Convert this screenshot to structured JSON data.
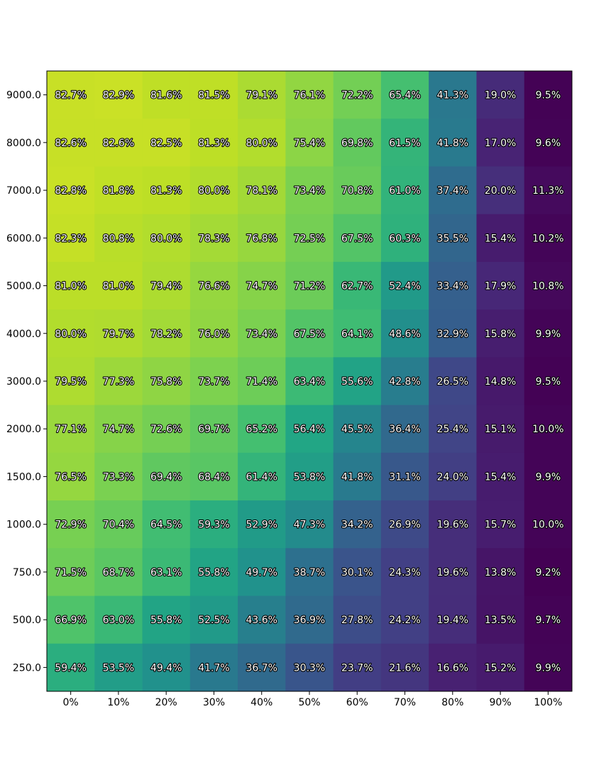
{
  "chart_data": {
    "type": "heatmap",
    "title": "",
    "xlabel": "",
    "ylabel": "",
    "x_categories": [
      "0%",
      "10%",
      "20%",
      "30%",
      "40%",
      "50%",
      "60%",
      "70%",
      "80%",
      "90%",
      "100%"
    ],
    "y_categories": [
      "9000.0",
      "8000.0",
      "7000.0",
      "6000.0",
      "5000.0",
      "4000.0",
      "3000.0",
      "2000.0",
      "1500.0",
      "1000.0",
      "750.0",
      "500.0",
      "250.0"
    ],
    "values": [
      [
        82.7,
        82.9,
        81.6,
        81.5,
        79.1,
        76.1,
        72.2,
        65.4,
        41.3,
        19.0,
        9.5
      ],
      [
        82.6,
        82.6,
        82.5,
        81.3,
        80.0,
        75.4,
        69.8,
        61.5,
        41.8,
        17.0,
        9.6
      ],
      [
        82.8,
        81.8,
        81.3,
        80.0,
        78.1,
        73.4,
        70.8,
        61.0,
        37.4,
        20.0,
        11.3
      ],
      [
        82.3,
        80.8,
        80.0,
        78.3,
        76.8,
        72.5,
        67.5,
        60.3,
        35.5,
        15.4,
        10.2
      ],
      [
        81.0,
        81.0,
        79.4,
        76.6,
        74.7,
        71.2,
        62.7,
        52.4,
        33.4,
        17.9,
        10.8
      ],
      [
        80.0,
        79.7,
        78.2,
        76.0,
        73.4,
        67.5,
        64.1,
        48.6,
        32.9,
        15.8,
        9.9
      ],
      [
        79.5,
        77.3,
        75.8,
        73.7,
        71.4,
        63.4,
        55.6,
        42.8,
        26.5,
        14.8,
        9.5
      ],
      [
        77.1,
        74.7,
        72.6,
        69.7,
        65.2,
        56.4,
        45.5,
        36.4,
        25.4,
        15.1,
        10.0
      ],
      [
        76.5,
        73.3,
        69.4,
        68.4,
        61.4,
        53.8,
        41.8,
        31.1,
        24.0,
        15.4,
        9.9
      ],
      [
        72.9,
        70.4,
        64.5,
        59.3,
        52.9,
        47.3,
        34.2,
        26.9,
        19.6,
        15.7,
        10.0
      ],
      [
        71.5,
        68.7,
        63.1,
        55.8,
        49.7,
        38.7,
        30.1,
        24.3,
        19.6,
        13.8,
        9.2
      ],
      [
        66.9,
        63.0,
        55.8,
        52.5,
        43.6,
        36.9,
        27.8,
        24.2,
        19.4,
        13.5,
        9.7
      ],
      [
        59.4,
        53.5,
        49.4,
        41.7,
        36.7,
        30.3,
        23.7,
        21.6,
        16.6,
        15.2,
        9.9
      ]
    ],
    "value_suffix": "%",
    "colormap": "viridis",
    "vmin": 9.2,
    "vmax": 82.9,
    "grid": false,
    "legend": "none"
  }
}
